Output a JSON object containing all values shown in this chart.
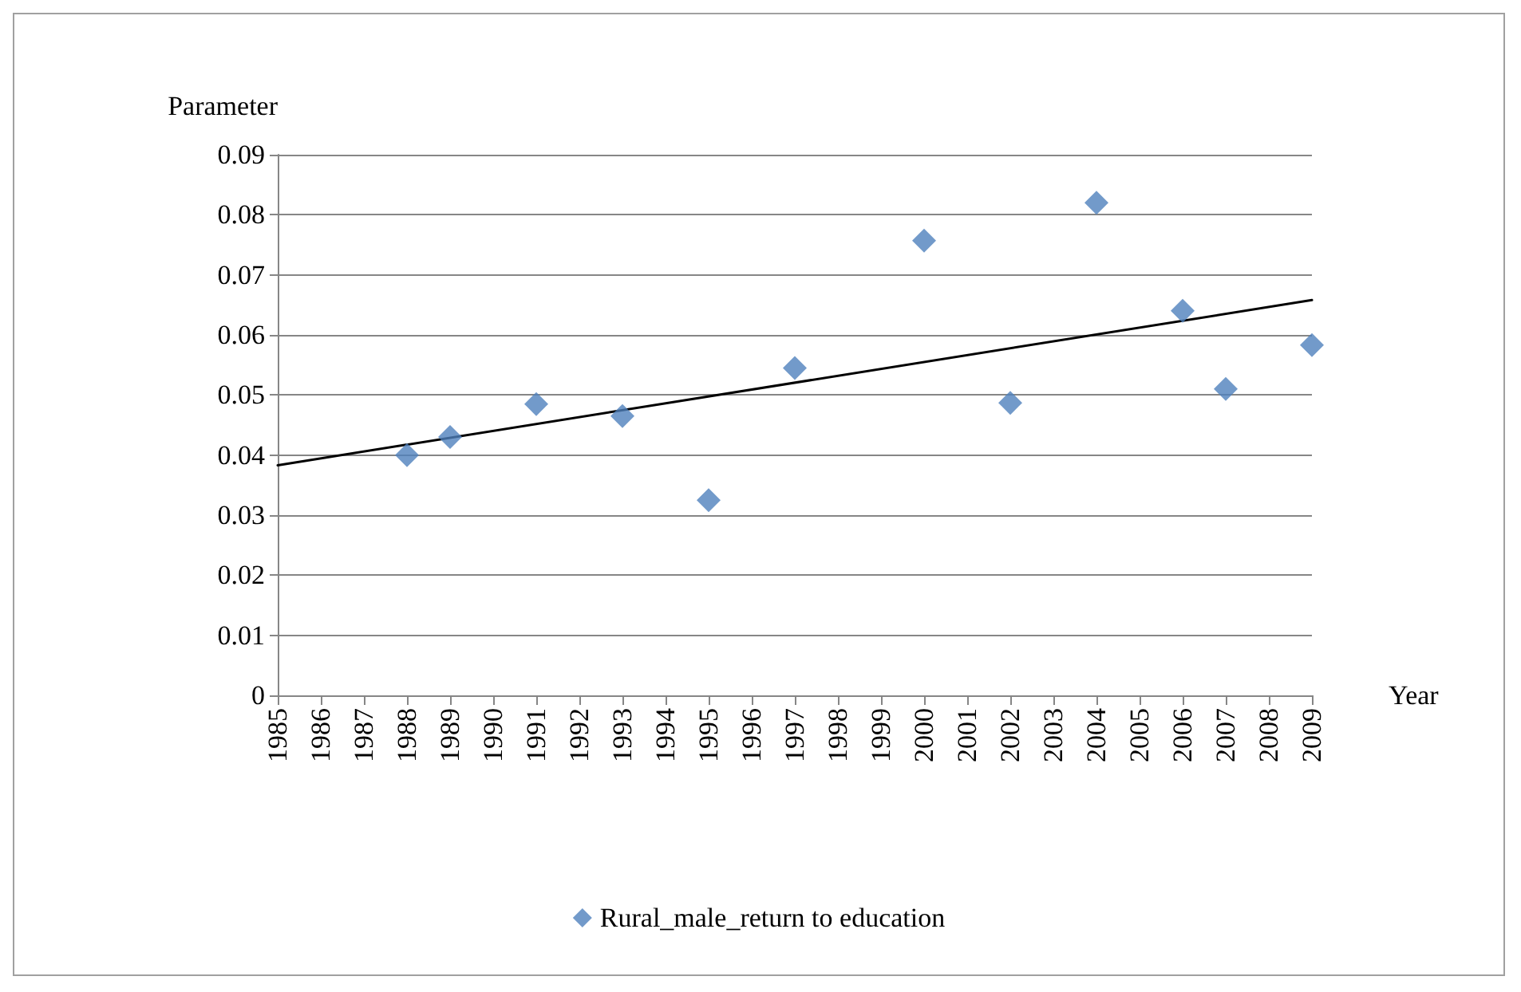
{
  "chart_data": {
    "type": "scatter",
    "xlabel": "Year",
    "ylabel": "Parameter",
    "xlim": [
      1985,
      2009
    ],
    "xticks": [
      1985,
      1986,
      1987,
      1988,
      1989,
      1990,
      1991,
      1992,
      1993,
      1994,
      1995,
      1996,
      1997,
      1998,
      1999,
      2000,
      2001,
      2002,
      2003,
      2004,
      2005,
      2006,
      2007,
      2008,
      2009
    ],
    "ylim": [
      0,
      0.09
    ],
    "yticks": [
      0,
      0.01,
      0.02,
      0.03,
      0.04,
      0.05,
      0.06,
      0.07,
      0.08,
      0.09
    ],
    "grid": "y",
    "legend": "bottom",
    "marker": "diamond",
    "series": [
      {
        "name": "Rural_male_return to education",
        "color": "#4f81bd",
        "x": [
          1988,
          1989,
          1991,
          1993,
          1995,
          1997,
          2000,
          2002,
          2004,
          2006,
          2007,
          2009
        ],
        "values": [
          0.04,
          0.043,
          0.0485,
          0.0465,
          0.0325,
          0.0545,
          0.0757,
          0.0487,
          0.082,
          0.064,
          0.051,
          0.0583
        ]
      },
      {
        "type": "line",
        "color": "#000000",
        "marker": "none",
        "line_style": "solid",
        "x": [
          1985,
          2009
        ],
        "values": [
          0.0383,
          0.0658
        ]
      }
    ]
  }
}
